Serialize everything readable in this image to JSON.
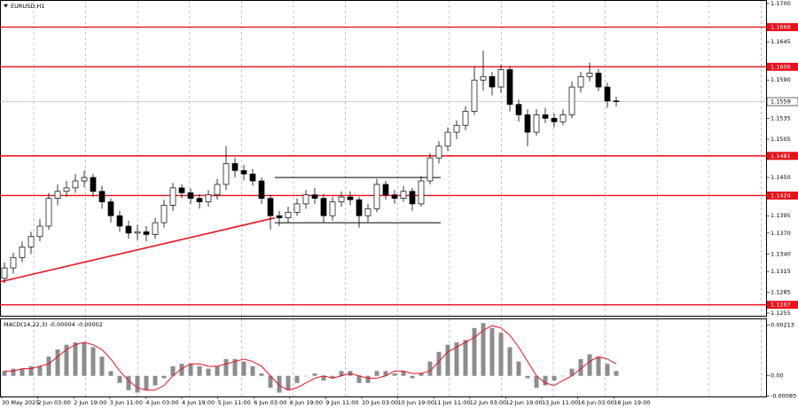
{
  "chart_data": {
    "type": "candlestick",
    "symbol": "EURUSD,H1",
    "up_color": "#ffffff",
    "down_color": "#000000",
    "ylim": [
      1.125,
      1.1705
    ],
    "yticks": [
      {
        "value": 1.17,
        "label": "1.1700"
      },
      {
        "value": 1.1645,
        "label": "1.1645"
      },
      {
        "value": 1.159,
        "label": "1.1590"
      },
      {
        "value": 1.1535,
        "label": "1.1535"
      },
      {
        "value": 1.1505,
        "label": "1.1505"
      },
      {
        "value": 1.145,
        "label": "1.1450"
      },
      {
        "value": 1.1395,
        "label": "1.1395"
      },
      {
        "value": 1.137,
        "label": "1.1370"
      },
      {
        "value": 1.134,
        "label": "1.1340"
      },
      {
        "value": 1.1315,
        "label": "1.1315"
      },
      {
        "value": 1.1285,
        "label": "1.1285"
      },
      {
        "value": 1.1255,
        "label": "1.1255"
      }
    ],
    "levels": [
      {
        "value": 1.1666,
        "label": "1.1666"
      },
      {
        "value": 1.1609,
        "label": "1.1609"
      },
      {
        "value": 1.1481,
        "label": "1.1481"
      },
      {
        "value": 1.1424,
        "label": "1.1424"
      },
      {
        "value": 1.1267,
        "label": "1.1267"
      }
    ],
    "level_color": "#e8101a",
    "current_price": {
      "value": 1.1559,
      "label": "1.1559"
    },
    "trendline": {
      "start_price": 1.13,
      "end_price": 1.1392
    },
    "range": {
      "high": 1.145,
      "low": 1.1385
    },
    "time_labels": [
      "30 May 2025",
      "2 Jun 03:00",
      "2 Jun 19:00",
      "3 Jun 11:00",
      "4 Jun 03:00",
      "4 Jun 19:00",
      "5 Jun 11:00",
      "6 Jun 03:00",
      "6 Jun 19:00",
      "9 Jun 11:00",
      "10 Jun 03:00",
      "10 Jun 19:00",
      "11 Jun 11:00",
      "12 Jun 03:00",
      "12 Jun 19:00",
      "13 Jun 11:00",
      "16 Jun 03:00",
      "16 Jun 19:00"
    ],
    "ohlc": [
      [
        1.1305,
        1.1328,
        1.1298,
        1.132
      ],
      [
        1.132,
        1.1342,
        1.1312,
        1.1335
      ],
      [
        1.1335,
        1.1358,
        1.1328,
        1.135
      ],
      [
        1.135,
        1.1372,
        1.134,
        1.1365
      ],
      [
        1.1365,
        1.139,
        1.1358,
        1.138
      ],
      [
        1.138,
        1.1428,
        1.1375,
        1.142
      ],
      [
        1.142,
        1.144,
        1.141,
        1.143
      ],
      [
        1.143,
        1.1445,
        1.1422,
        1.1435
      ],
      [
        1.1435,
        1.1455,
        1.1428,
        1.1445
      ],
      [
        1.1445,
        1.146,
        1.1436,
        1.145
      ],
      [
        1.145,
        1.1455,
        1.1422,
        1.143
      ],
      [
        1.143,
        1.1438,
        1.1405,
        1.1415
      ],
      [
        1.1415,
        1.142,
        1.1385,
        1.1395
      ],
      [
        1.1395,
        1.1402,
        1.1372,
        1.138
      ],
      [
        1.138,
        1.1388,
        1.1362,
        1.137
      ],
      [
        1.137,
        1.1382,
        1.136,
        1.1372
      ],
      [
        1.1372,
        1.138,
        1.1358,
        1.1368
      ],
      [
        1.1368,
        1.1392,
        1.1362,
        1.1385
      ],
      [
        1.1385,
        1.1418,
        1.1378,
        1.141
      ],
      [
        1.141,
        1.1442,
        1.1402,
        1.1435
      ],
      [
        1.1435,
        1.144,
        1.142,
        1.1428
      ],
      [
        1.1428,
        1.1434,
        1.1412,
        1.142
      ],
      [
        1.142,
        1.1426,
        1.1405,
        1.1415
      ],
      [
        1.1415,
        1.1432,
        1.1408,
        1.1425
      ],
      [
        1.1425,
        1.1448,
        1.1418,
        1.144
      ],
      [
        1.144,
        1.1495,
        1.1432,
        1.147
      ],
      [
        1.147,
        1.1478,
        1.145,
        1.146
      ],
      [
        1.146,
        1.1468,
        1.1446,
        1.1455
      ],
      [
        1.1455,
        1.1462,
        1.1438,
        1.1445
      ],
      [
        1.1445,
        1.145,
        1.1412,
        1.142
      ],
      [
        1.142,
        1.1425,
        1.1375,
        1.1395
      ],
      [
        1.1395,
        1.1402,
        1.138,
        1.1392
      ],
      [
        1.1392,
        1.1408,
        1.1385,
        1.14
      ],
      [
        1.14,
        1.142,
        1.1395,
        1.1412
      ],
      [
        1.1412,
        1.1432,
        1.1405,
        1.1425
      ],
      [
        1.1425,
        1.1435,
        1.1412,
        1.142
      ],
      [
        1.142,
        1.1426,
        1.1385,
        1.1395
      ],
      [
        1.1395,
        1.1422,
        1.1388,
        1.1415
      ],
      [
        1.1415,
        1.143,
        1.1408,
        1.1422
      ],
      [
        1.1422,
        1.143,
        1.141,
        1.1418
      ],
      [
        1.1418,
        1.1422,
        1.1378,
        1.1395
      ],
      [
        1.1395,
        1.1412,
        1.1386,
        1.1405
      ],
      [
        1.1405,
        1.1448,
        1.14,
        1.144
      ],
      [
        1.144,
        1.1445,
        1.1418,
        1.1425
      ],
      [
        1.1425,
        1.1432,
        1.1412,
        1.142
      ],
      [
        1.142,
        1.1438,
        1.1415,
        1.143
      ],
      [
        1.143,
        1.1435,
        1.1402,
        1.1412
      ],
      [
        1.1412,
        1.1452,
        1.1408,
        1.1445
      ],
      [
        1.1445,
        1.1485,
        1.144,
        1.1478
      ],
      [
        1.1478,
        1.1502,
        1.147,
        1.1495
      ],
      [
        1.1495,
        1.1522,
        1.1488,
        1.1515
      ],
      [
        1.1515,
        1.1532,
        1.1505,
        1.1525
      ],
      [
        1.1525,
        1.1552,
        1.1518,
        1.1545
      ],
      [
        1.1545,
        1.161,
        1.154,
        1.159
      ],
      [
        1.159,
        1.1632,
        1.1575,
        1.1595
      ],
      [
        1.1595,
        1.1602,
        1.1568,
        1.158
      ],
      [
        1.158,
        1.1612,
        1.1572,
        1.1605
      ],
      [
        1.1605,
        1.161,
        1.1545,
        1.1555
      ],
      [
        1.1555,
        1.1562,
        1.153,
        1.154
      ],
      [
        1.154,
        1.1548,
        1.1495,
        1.1515
      ],
      [
        1.1515,
        1.1548,
        1.151,
        1.154
      ],
      [
        1.154,
        1.155,
        1.1528,
        1.1535
      ],
      [
        1.1535,
        1.1542,
        1.1522,
        1.153
      ],
      [
        1.153,
        1.1548,
        1.1525,
        1.154
      ],
      [
        1.154,
        1.1588,
        1.1535,
        1.158
      ],
      [
        1.158,
        1.1602,
        1.1572,
        1.1595
      ],
      [
        1.1595,
        1.1615,
        1.1588,
        1.16
      ],
      [
        1.16,
        1.1606,
        1.1574,
        1.158
      ],
      [
        1.158,
        1.1586,
        1.155,
        1.156
      ],
      [
        1.156,
        1.1566,
        1.1552,
        1.1559
      ]
    ],
    "macd": {
      "label": "MACD(14,22,3) -0.00004 -0.00002",
      "hist_color": "#8c8c8c",
      "signal_color": "#e8101a",
      "ylim": [
        -0.0009,
        0.0024
      ],
      "yticks": [
        0.00213,
        {
          "value": 0,
          "label": "0.00"
        },
        -0.00085
      ],
      "histogram": [
        0.0002,
        0.0003,
        0.0003,
        0.0004,
        0.0004,
        0.0008,
        0.0011,
        0.0013,
        0.0014,
        0.0014,
        0.0012,
        0.0008,
        0.0002,
        -0.0003,
        -0.0006,
        -0.0007,
        -0.0006,
        -0.0004,
        -0.0001,
        0.0004,
        0.0005,
        0.0005,
        0.0004,
        0.0003,
        0.0004,
        0.0007,
        0.0007,
        0.0006,
        0.0004,
        0.0001,
        -0.0005,
        -0.0007,
        -0.0006,
        -0.0003,
        0,
        0.0001,
        -0.0002,
        -0.0001,
        0.0002,
        0.0002,
        -0.0003,
        -0.0003,
        0.0002,
        0.0002,
        0.0001,
        0.0002,
        -0.0001,
        0.0001,
        0.0006,
        0.001,
        0.0013,
        0.0014,
        0.0015,
        0.002,
        0.0022,
        0.002,
        0.0018,
        0.0012,
        0.0006,
        -0.0001,
        -0.0005,
        -0.0004,
        -0.0002,
        0,
        0.0003,
        0.0007,
        0.0009,
        0.0008,
        0.0005,
        0.0002
      ],
      "signal": [
        0.0002,
        0.0002,
        0.0003,
        0.0003,
        0.0004,
        0.0005,
        0.0008,
        0.0011,
        0.0013,
        0.0014,
        0.0013,
        0.0011,
        0.0007,
        0.0002,
        -0.0002,
        -0.0005,
        -0.0006,
        -0.0006,
        -0.0004,
        0,
        0.0003,
        0.0005,
        0.0005,
        0.0004,
        0.0004,
        0.0005,
        0.0006,
        0.0007,
        0.0006,
        0.0004,
        0,
        -0.0004,
        -0.0006,
        -0.0005,
        -0.0003,
        -0.0001,
        0,
        -0.0001,
        0,
        0.0001,
        0,
        -0.0001,
        -0.0001,
        0,
        0.0002,
        0.0002,
        0.0001,
        0.0001,
        0.0002,
        0.0006,
        0.001,
        0.0012,
        0.0014,
        0.0016,
        0.0019,
        0.0021,
        0.002,
        0.0017,
        0.0012,
        0.0006,
        0,
        -0.0003,
        -0.0004,
        -0.0002,
        0,
        0.0003,
        0.0006,
        0.0008,
        0.0007,
        0.0005
      ]
    }
  }
}
